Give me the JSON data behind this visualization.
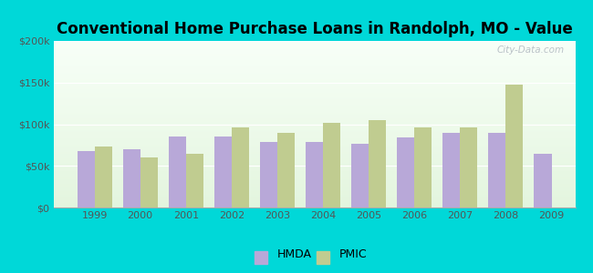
{
  "title": "Conventional Home Purchase Loans in Randolph, MO - Value",
  "years": [
    1999,
    2000,
    2001,
    2002,
    2003,
    2004,
    2005,
    2006,
    2007,
    2008,
    2009
  ],
  "hmda": [
    68000,
    70000,
    85000,
    85000,
    79000,
    79000,
    77000,
    84000,
    90000,
    90000,
    65000
  ],
  "pmic": [
    73000,
    60000,
    65000,
    96000,
    90000,
    102000,
    105000,
    96000,
    96000,
    148000,
    null
  ],
  "hmda_color": "#b8a8d8",
  "pmic_color": "#c0cc90",
  "background_color": "#00d8d8",
  "ylim": [
    0,
    200000
  ],
  "yticks": [
    0,
    50000,
    100000,
    150000,
    200000
  ],
  "ytick_labels": [
    "$0",
    "$50k",
    "$100k",
    "$150k",
    "$200k"
  ],
  "bar_width": 0.38,
  "title_fontsize": 12,
  "tick_fontsize": 8,
  "legend_fontsize": 9,
  "watermark": "City-Data.com"
}
